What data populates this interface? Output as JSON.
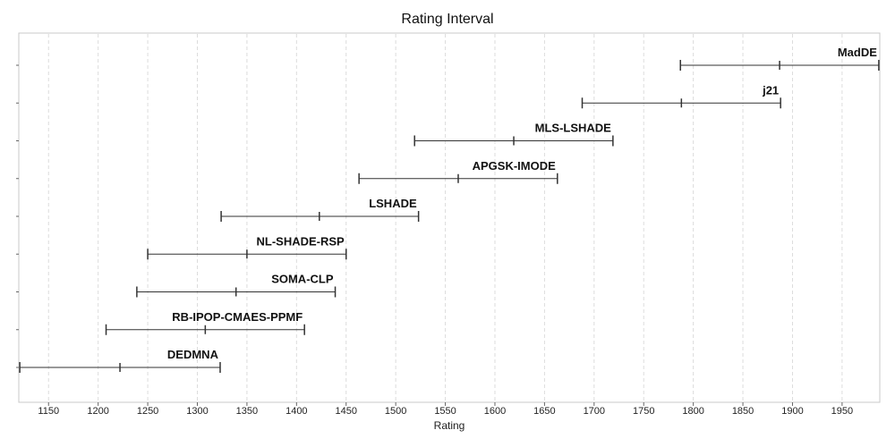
{
  "chart_data": {
    "type": "interval",
    "title": "Rating Interval",
    "xlabel": "Rating",
    "ylabel": "",
    "xlim": [
      1120,
      1988
    ],
    "xticks": [
      1150,
      1200,
      1250,
      1300,
      1350,
      1400,
      1450,
      1500,
      1550,
      1600,
      1650,
      1700,
      1750,
      1800,
      1850,
      1900,
      1950
    ],
    "grid": true,
    "series": [
      {
        "name": "DEDMNA",
        "low": 1121,
        "mid": 1222,
        "high": 1323
      },
      {
        "name": "RB-IPOP-CMAES-PPMF",
        "low": 1208,
        "mid": 1308,
        "high": 1408
      },
      {
        "name": "SOMA-CLP",
        "low": 1239,
        "mid": 1339,
        "high": 1439
      },
      {
        "name": "NL-SHADE-RSP",
        "low": 1250,
        "mid": 1350,
        "high": 1450
      },
      {
        "name": "LSHADE",
        "low": 1324,
        "mid": 1423,
        "high": 1523
      },
      {
        "name": "APGSK-IMODE",
        "low": 1463,
        "mid": 1563,
        "high": 1663
      },
      {
        "name": "MLS-LSHADE",
        "low": 1519,
        "mid": 1619,
        "high": 1719
      },
      {
        "name": "j21",
        "low": 1688,
        "mid": 1788,
        "high": 1888
      },
      {
        "name": "MadDE",
        "low": 1787,
        "mid": 1887,
        "high": 1987
      }
    ]
  }
}
